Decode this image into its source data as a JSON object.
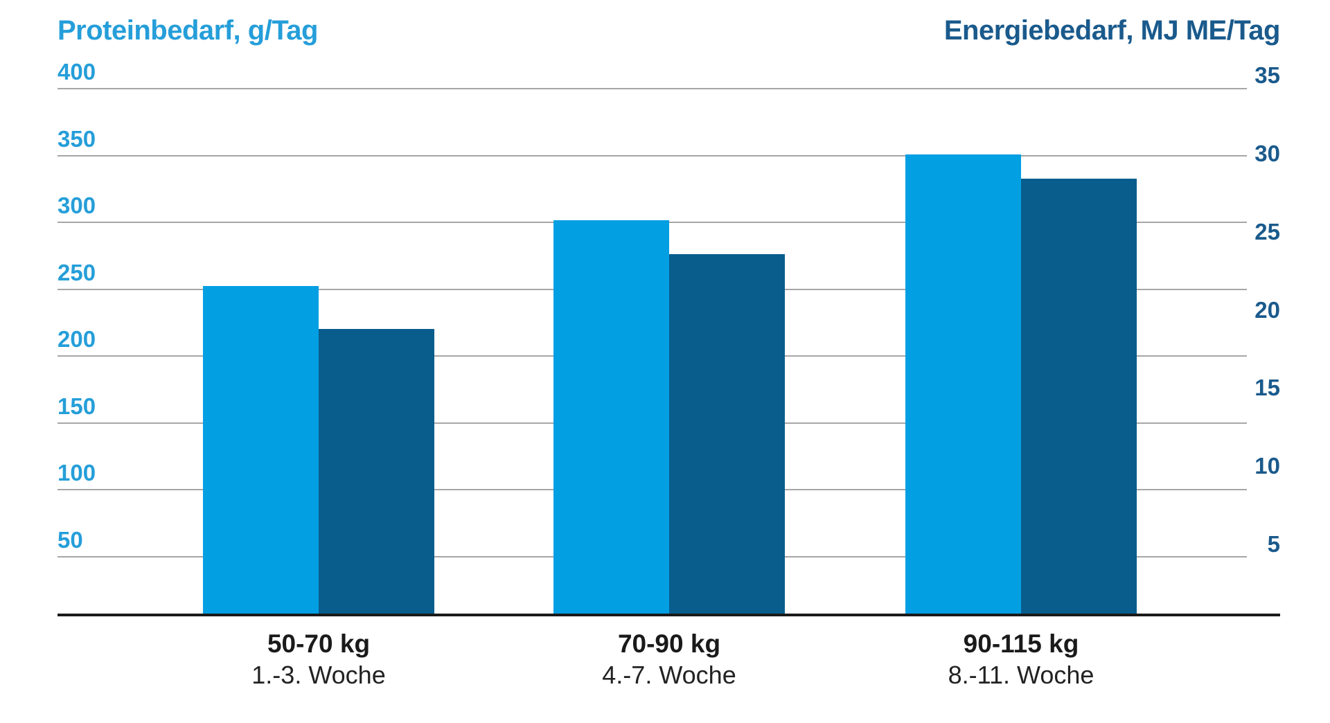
{
  "chart_data": {
    "type": "bar",
    "title_left": "Proteinbedarf, g/Tag",
    "title_right": "Energiebedarf, MJ ME/Tag",
    "categories": [
      "50-70 kg",
      "70-90 kg",
      "90-115 kg"
    ],
    "category_sublabels": [
      "1.-3. Woche",
      "4.-7. Woche",
      "8.-11. Woche"
    ],
    "series": [
      {
        "name": "Proteinbedarf, g/Tag",
        "axis": "left",
        "values": [
          250,
          300,
          350
        ],
        "color": "#039FE3"
      },
      {
        "name": "Energiebedarf, MJ ME/Tag",
        "axis": "right",
        "values": [
          19,
          24,
          29
        ],
        "color": "#095D8D"
      }
    ],
    "left_axis": {
      "ticks": [
        400,
        350,
        300,
        250,
        200,
        150,
        100,
        50
      ],
      "range": [
        0,
        400
      ]
    },
    "right_axis": {
      "ticks": [
        35,
        30,
        25,
        20,
        15,
        10,
        5
      ],
      "range": [
        0,
        35
      ]
    },
    "grid": true,
    "legend": false
  },
  "colors": {
    "bar_light": "#039FE3",
    "bar_dark": "#095D8D",
    "text_light": "#259ED9",
    "text_dark": "#1A5A8C",
    "gridline": "#A6A6A6",
    "axis_line": "#1A1A1A"
  }
}
